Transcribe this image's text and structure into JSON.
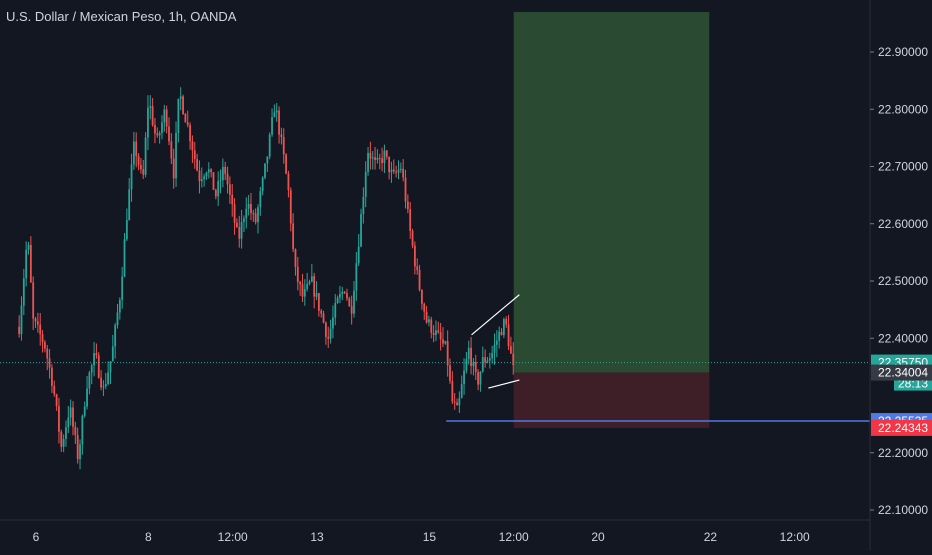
{
  "chart_data": {
    "type": "candlestick",
    "title": "U.S. Dollar / Mexican Peso, 1h, OANDA",
    "interval": "1h",
    "source": "OANDA",
    "colors": {
      "background": "#131722",
      "up": "#26a69a",
      "down": "#ef5350",
      "axis_text": "#d1d4dc",
      "profit_zone": "#2b4a32",
      "loss_zone": "#3f1f27",
      "horizontal_line": "#4c7ae8",
      "trend_lines": "#ffffff",
      "last_price": "#26a69a"
    },
    "x_axis": {
      "ticks": [
        {
          "label": "6",
          "day": 6.0
        },
        {
          "label": "8",
          "day": 8.0
        },
        {
          "label": "12:00",
          "day": 9.5
        },
        {
          "label": "13",
          "day": 11.0
        },
        {
          "label": "15",
          "day": 13.0
        },
        {
          "label": "12:00",
          "day": 14.5
        },
        {
          "label": "20",
          "day": 16.0
        },
        {
          "label": "22",
          "day": 18.0
        },
        {
          "label": "12:00",
          "day": 19.5
        }
      ]
    },
    "y_axis": {
      "ylim": [
        22.05,
        22.97
      ],
      "ticks": [
        "22.90000",
        "22.80000",
        "22.70000",
        "22.60000",
        "22.50000",
        "22.40000",
        "22.20000",
        "22.10000"
      ]
    },
    "price_path": [
      [
        5.7,
        22.42
      ],
      [
        5.85,
        22.58
      ],
      [
        5.95,
        22.43
      ],
      [
        6.15,
        22.39
      ],
      [
        6.3,
        22.32
      ],
      [
        6.45,
        22.21
      ],
      [
        6.6,
        22.28
      ],
      [
        6.75,
        22.19
      ],
      [
        6.9,
        22.32
      ],
      [
        7.05,
        22.37
      ],
      [
        7.2,
        22.31
      ],
      [
        7.35,
        22.37
      ],
      [
        7.5,
        22.48
      ],
      [
        7.62,
        22.62
      ],
      [
        7.75,
        22.74
      ],
      [
        7.9,
        22.67
      ],
      [
        8.0,
        22.82
      ],
      [
        8.15,
        22.74
      ],
      [
        8.3,
        22.8
      ],
      [
        8.45,
        22.69
      ],
      [
        8.55,
        22.83
      ],
      [
        8.75,
        22.75
      ],
      [
        8.9,
        22.68
      ],
      [
        9.05,
        22.7
      ],
      [
        9.2,
        22.65
      ],
      [
        9.35,
        22.7
      ],
      [
        9.5,
        22.62
      ],
      [
        9.6,
        22.57
      ],
      [
        9.75,
        22.64
      ],
      [
        9.9,
        22.6
      ],
      [
        10.05,
        22.68
      ],
      [
        10.15,
        22.74
      ],
      [
        10.25,
        22.81
      ],
      [
        10.4,
        22.72
      ],
      [
        10.5,
        22.65
      ],
      [
        10.6,
        22.52
      ],
      [
        10.75,
        22.47
      ],
      [
        10.9,
        22.5
      ],
      [
        11.05,
        22.45
      ],
      [
        11.2,
        22.4
      ],
      [
        11.35,
        22.46
      ],
      [
        11.5,
        22.49
      ],
      [
        11.6,
        22.44
      ],
      [
        11.75,
        22.58
      ],
      [
        11.9,
        22.73
      ],
      [
        12.05,
        22.7
      ],
      [
        12.2,
        22.72
      ],
      [
        12.35,
        22.68
      ],
      [
        12.5,
        22.7
      ],
      [
        12.65,
        22.59
      ],
      [
        12.8,
        22.5
      ],
      [
        12.95,
        22.43
      ],
      [
        13.1,
        22.41
      ],
      [
        13.3,
        22.38
      ],
      [
        13.4,
        22.29
      ],
      [
        13.5,
        22.27
      ],
      [
        13.6,
        22.33
      ],
      [
        13.7,
        22.38
      ],
      [
        13.85,
        22.32
      ],
      [
        13.95,
        22.36
      ],
      [
        14.1,
        22.37
      ],
      [
        14.25,
        22.41
      ],
      [
        14.35,
        22.43
      ],
      [
        14.45,
        22.37
      ],
      [
        14.5,
        22.34
      ]
    ],
    "last_price": "22.35750",
    "countdown": "28:13",
    "price_labels": [
      {
        "value": "22.34004",
        "color": "#363a45"
      },
      {
        "value": "22.25535",
        "color": "#4c7ae8"
      },
      {
        "value": "22.24343",
        "color": "#f23645"
      }
    ],
    "horizontal_line": {
      "price": 22.25535,
      "from_day": 13.3
    },
    "position_tool": {
      "from_day": 14.5,
      "to_day": 17.98,
      "entry": 22.34004,
      "target": 22.97,
      "stop": 22.24343
    },
    "trend_lines": [
      {
        "from": [
          13.75,
          22.406
        ],
        "to": [
          14.6,
          22.476
        ]
      },
      {
        "from": [
          14.05,
          22.313
        ],
        "to": [
          14.6,
          22.327
        ]
      }
    ]
  }
}
